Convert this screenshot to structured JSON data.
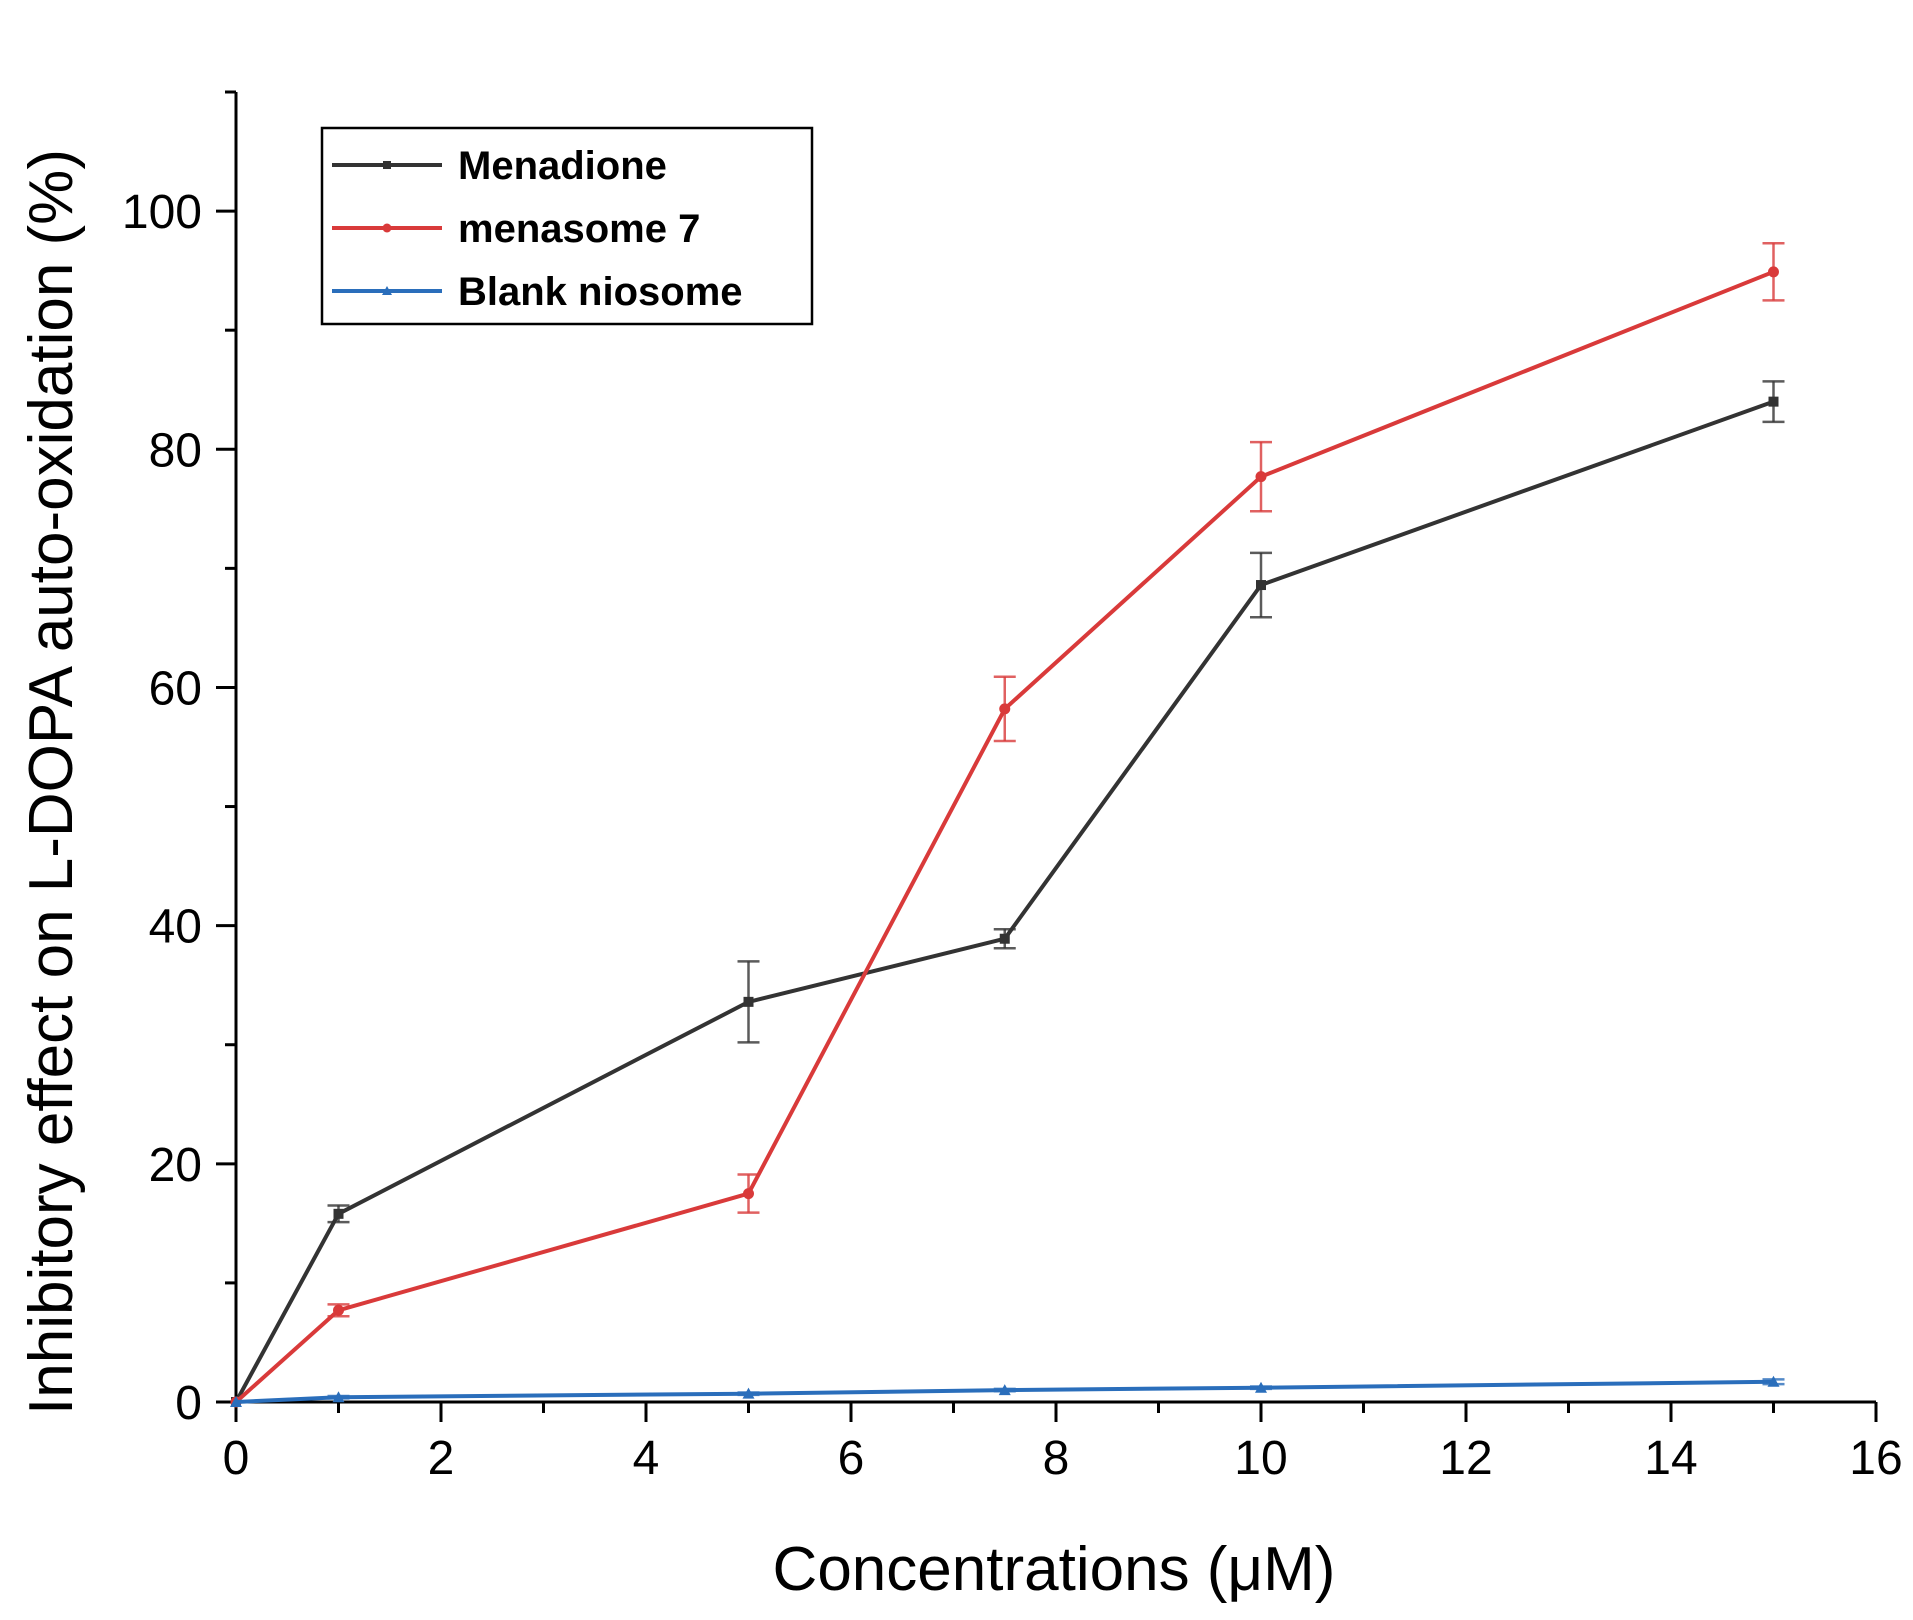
{
  "chart_data": {
    "type": "line",
    "title": "",
    "xlabel": "Concentrations (μM)",
    "ylabel": "Inhibitory effect on L-DOPA auto-oxidation (%)",
    "xlim": [
      0,
      16
    ],
    "ylim": [
      0,
      110
    ],
    "x_ticks": [
      0,
      2,
      4,
      6,
      8,
      10,
      12,
      14,
      16
    ],
    "y_ticks": [
      0,
      20,
      40,
      60,
      80,
      100
    ],
    "grid": false,
    "legend_position": "top-left",
    "series": [
      {
        "name": "Menadione",
        "color": "#333333",
        "x": [
          0,
          1,
          5,
          7.5,
          10,
          15
        ],
        "y": [
          0,
          15.8,
          33.6,
          38.9,
          68.6,
          84.0
        ],
        "error": [
          0,
          0.7,
          3.4,
          0.8,
          2.7,
          1.7
        ]
      },
      {
        "name": "menasome 7",
        "color": "#d93a3a",
        "x": [
          0,
          1,
          5,
          7.5,
          10,
          15
        ],
        "y": [
          0,
          7.7,
          17.5,
          58.2,
          77.7,
          94.9
        ],
        "error": [
          0,
          0.5,
          1.6,
          2.7,
          2.9,
          2.4
        ]
      },
      {
        "name": "Blank niosome",
        "color": "#2a6ebb",
        "x": [
          0,
          1,
          5,
          7.5,
          10,
          15
        ],
        "y": [
          0,
          0.4,
          0.7,
          1.0,
          1.2,
          1.7
        ],
        "error": [
          0,
          0.1,
          0.1,
          0.1,
          0.1,
          0.2
        ]
      }
    ]
  }
}
